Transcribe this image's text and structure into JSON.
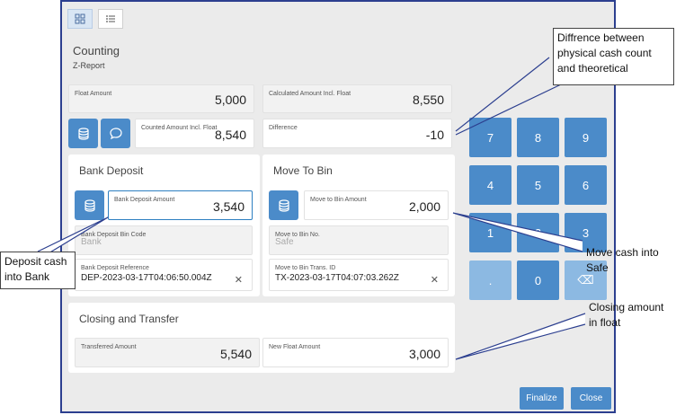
{
  "header": {
    "title": "Counting",
    "subtitle": "Z-Report",
    "view_icons": [
      "grid-view-icon",
      "list-view-icon"
    ]
  },
  "summary": {
    "float_amount_label": "Float Amount",
    "float_amount_value": "5,000",
    "calculated_label": "Calculated Amount Incl. Float",
    "calculated_value": "8,550",
    "counted_label": "Counted Amount Incl. Float",
    "counted_value": "8,540",
    "difference_label": "Difference",
    "difference_value": "-10"
  },
  "bank_deposit": {
    "title": "Bank Deposit",
    "amount_label": "Bank Deposit Amount",
    "amount_value": "3,540",
    "bin_code_label": "Bank Deposit Bin Code",
    "bin_code_value": "Bank",
    "reference_label": "Bank Deposit Reference",
    "reference_value": "DEP-2023-03-17T04:06:50.004Z"
  },
  "move_to_bin": {
    "title": "Move To Bin",
    "amount_label": "Move to Bin Amount",
    "amount_value": "2,000",
    "bin_no_label": "Move to Bin No.",
    "bin_no_value": "Safe",
    "trans_id_label": "Move to Bin Trans. ID",
    "trans_id_value": "TX-2023-03-17T04:07:03.262Z"
  },
  "closing": {
    "title": "Closing and Transfer",
    "transferred_label": "Transferred Amount",
    "transferred_value": "5,540",
    "new_float_label": "New Float Amount",
    "new_float_value": "3,000"
  },
  "keypad": {
    "row1": [
      "7",
      "8",
      "9"
    ],
    "row2": [
      "4",
      "5",
      "6"
    ],
    "row3": [
      "1",
      "2",
      "3"
    ],
    "row4": [
      ".",
      "0",
      "⌫"
    ]
  },
  "actions": {
    "finalize": "Finalize",
    "close": "Close"
  },
  "annotations": {
    "difference": "Diffrence between physical cash count and theoretical",
    "deposit": "Deposit cash into Bank",
    "move": "Move cash into Safe",
    "closing": "Closing amount in float"
  },
  "colors": {
    "accent": "#4b8bc9",
    "accent_light": "#8cb9e2",
    "frame": "#2c3f8f",
    "background": "#ebebeb"
  }
}
